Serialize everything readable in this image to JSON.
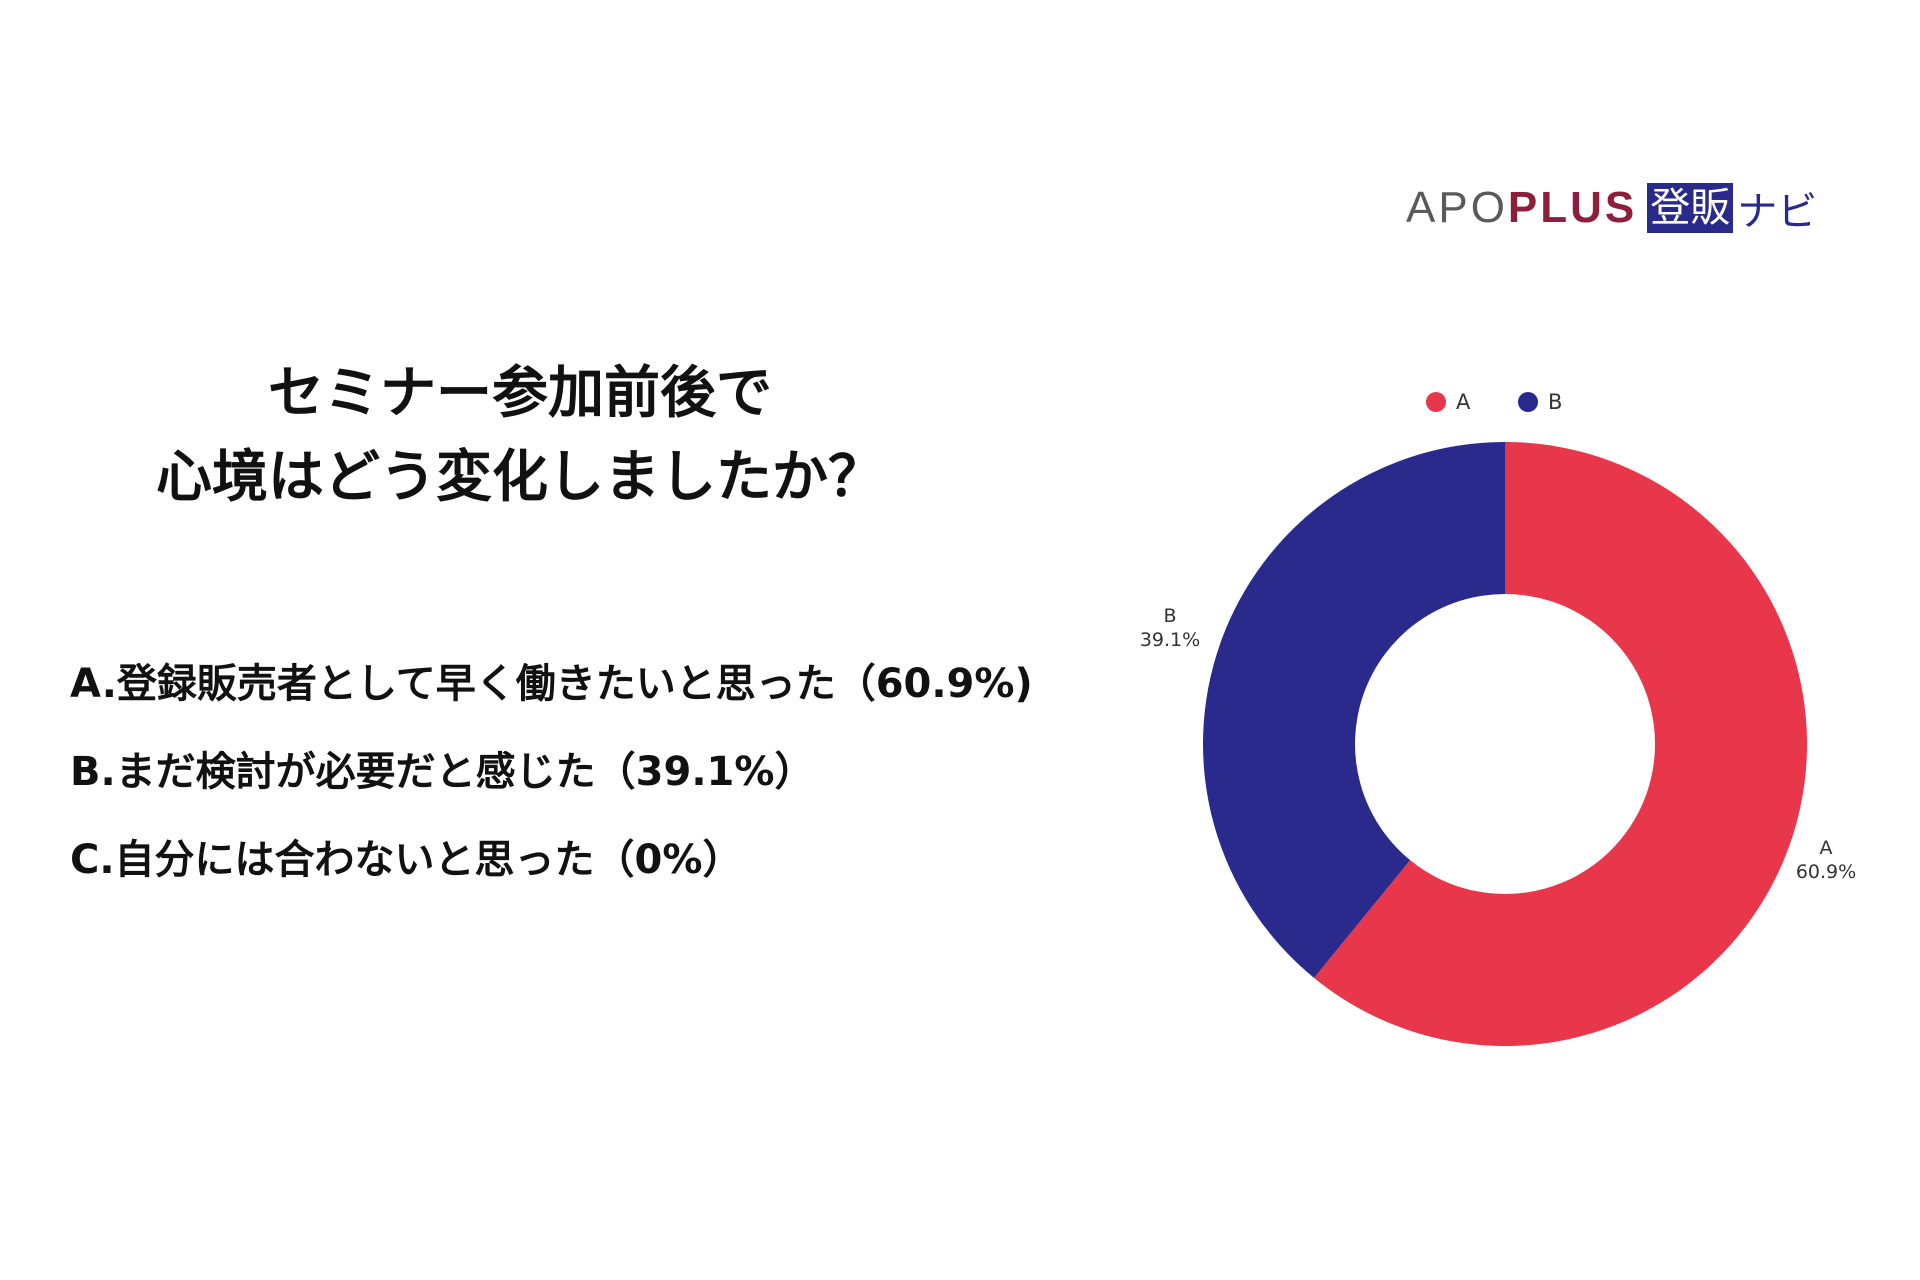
{
  "logo": {
    "apo": "APO",
    "plus": "PLUS",
    "box": "登販",
    "navi": "ナビ"
  },
  "question": {
    "line1": "セミナー参加前後で",
    "line2": "心境はどう変化しましたか？"
  },
  "answers": [
    "A.登録販売者として早く働きたいと思った（60.9%)",
    "B.まだ検討が必要だと感じた（39.1%）",
    "C.自分には合わないと思った（0%）"
  ],
  "colors": {
    "A": "#E8364A",
    "B": "#292A8C"
  },
  "chart_data": {
    "type": "pie",
    "subtype": "donut",
    "legend_position": "top",
    "categories": [
      "A",
      "B"
    ],
    "values": [
      60.9,
      39.1
    ],
    "labels": [
      "60.9%",
      "39.1%"
    ],
    "colors": [
      "#E8364A",
      "#292A8C"
    ]
  }
}
